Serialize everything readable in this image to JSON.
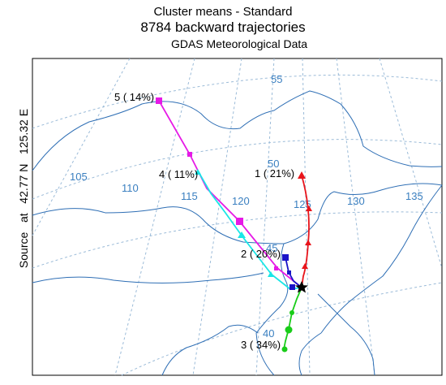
{
  "titles": {
    "line1": "Cluster means - Standard",
    "line2": "8784 backward trajectories",
    "line3": "GDAS Meteorological Data"
  },
  "side_label": "Source   at   42.77 N   125.32 E",
  "grid_labels": {
    "lat": [
      "55",
      "50",
      "45",
      "40"
    ],
    "lon": [
      "105",
      "110",
      "115",
      "120",
      "125",
      "130",
      "135"
    ]
  },
  "clusters": [
    {
      "label": "1 ( 21%)",
      "color": "#e8141b",
      "marker": "triangle"
    },
    {
      "label": "2 ( 20%)",
      "color": "#1a14c8",
      "marker": "square"
    },
    {
      "label": "3 ( 34%)",
      "color": "#19cc19",
      "marker": "circle"
    },
    {
      "label": "4 ( 11%)",
      "color": "#19e6e6",
      "marker": "triangle"
    },
    {
      "label": "5 ( 14%)",
      "color": "#e619e6",
      "marker": "square"
    }
  ],
  "source_marker": "star-icon"
}
